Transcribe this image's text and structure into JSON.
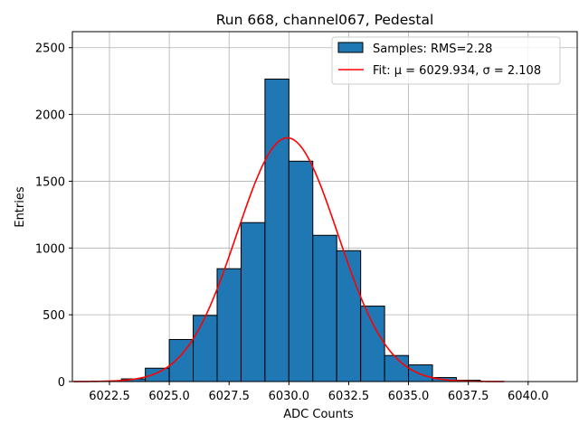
{
  "chart_data": {
    "type": "bar",
    "title": "Run 668, channel067, Pedestal",
    "xlabel": "ADC Counts",
    "ylabel": "Entries",
    "xlim": [
      6020.95,
      6042.05
    ],
    "ylim": [
      0,
      2620
    ],
    "xticks": [
      6022.5,
      6025.0,
      6027.5,
      6030.0,
      6032.5,
      6035.0,
      6037.5,
      6040.0
    ],
    "xtick_labels": [
      "6022.5",
      "6025.0",
      "6027.5",
      "6030.0",
      "6032.5",
      "6035.0",
      "6037.5",
      "6040.0"
    ],
    "yticks": [
      0,
      500,
      1000,
      1500,
      2000,
      2500
    ],
    "ytick_labels": [
      "0",
      "500",
      "1000",
      "1500",
      "2000",
      "2500"
    ],
    "grid": true,
    "legend_position": "top-right",
    "series": [
      {
        "name": "Samples: RMS=2.28",
        "kind": "histogram",
        "color": "#1f77b4",
        "edge_color": "#000000",
        "bins": [
          {
            "start": 6021,
            "end": 6022,
            "value": 0
          },
          {
            "start": 6022,
            "end": 6023,
            "value": 0
          },
          {
            "start": 6023,
            "end": 6024,
            "value": 20
          },
          {
            "start": 6024,
            "end": 6025,
            "value": 100
          },
          {
            "start": 6025,
            "end": 6026,
            "value": 315
          },
          {
            "start": 6026,
            "end": 6027,
            "value": 495
          },
          {
            "start": 6027,
            "end": 6028,
            "value": 845
          },
          {
            "start": 6028,
            "end": 6029,
            "value": 1190
          },
          {
            "start": 6029,
            "end": 6030,
            "value": 2265
          },
          {
            "start": 6030,
            "end": 6031,
            "value": 1650
          },
          {
            "start": 6031,
            "end": 6032,
            "value": 1095
          },
          {
            "start": 6032,
            "end": 6033,
            "value": 980
          },
          {
            "start": 6033,
            "end": 6034,
            "value": 565
          },
          {
            "start": 6034,
            "end": 6035,
            "value": 195
          },
          {
            "start": 6035,
            "end": 6036,
            "value": 125
          },
          {
            "start": 6036,
            "end": 6037,
            "value": 30
          },
          {
            "start": 6037,
            "end": 6038,
            "value": 10
          },
          {
            "start": 6038,
            "end": 6039,
            "value": 0
          },
          {
            "start": 6039,
            "end": 6040,
            "value": 0
          },
          {
            "start": 6040,
            "end": 6041,
            "value": 0
          }
        ]
      },
      {
        "name": "Fit: μ = 6029.934, σ = 2.108",
        "kind": "gaussian-fit",
        "color": "#ff0000",
        "mu": 6029.934,
        "sigma": 2.108,
        "amplitude": 1825,
        "x_range": [
          6021,
          6039
        ]
      }
    ]
  }
}
